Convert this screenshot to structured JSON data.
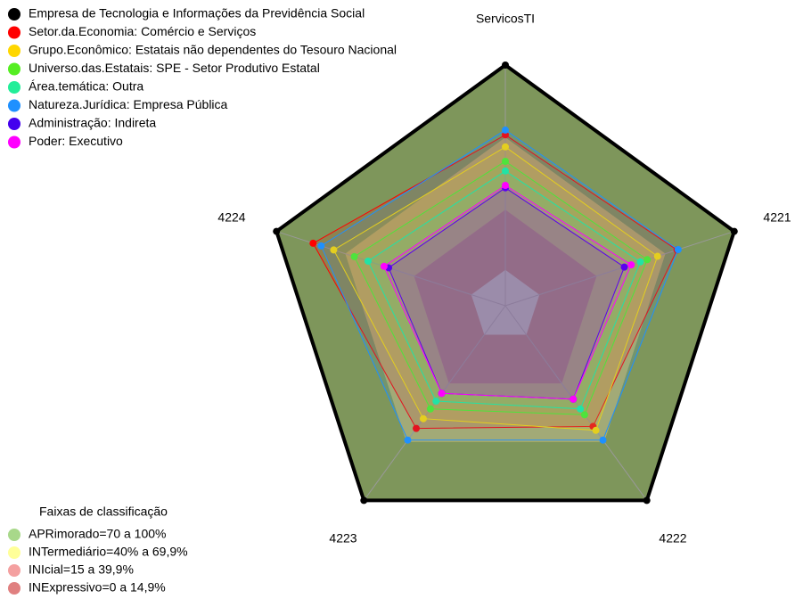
{
  "chart_data": {
    "type": "radar",
    "axes": [
      "ServicosTI",
      "4221",
      "4222",
      "4223",
      "4224"
    ],
    "ylim": [
      0,
      100
    ],
    "series": [
      {
        "name": "Empresa de Tecnologia e Informações da Previdência Social",
        "color": "#000000",
        "values": [
          100,
          100,
          100,
          100,
          100
        ]
      },
      {
        "name": "Setor.da.Economia: Comércio e Serviços",
        "color": "#ff0000",
        "values": [
          71,
          75,
          62,
          63,
          84
        ]
      },
      {
        "name": "Grupo.Econômico: Estatais não dependentes do Tesouro Nacional",
        "color": "#ffd700",
        "values": [
          66,
          66.5,
          64,
          58,
          75
        ]
      },
      {
        "name": "Universo.das.Estatais: SPE - Setor Produtivo Estatal",
        "color": "#55ee22",
        "values": [
          60,
          62,
          56,
          53,
          66
        ]
      },
      {
        "name": "Área.temática: Outra",
        "color": "#22ee99",
        "values": [
          56,
          59,
          53,
          49,
          60
        ]
      },
      {
        "name": "Natureza.Jurídica: Empresa Pública",
        "color": "#1e90ff",
        "values": [
          73,
          75.5,
          69,
          69,
          80.5
        ]
      },
      {
        "name": "Administração: Indireta",
        "color": "#4400ee",
        "values": [
          49,
          52,
          48,
          45,
          51
        ]
      },
      {
        "name": "Poder: Executivo",
        "color": "#ff00ff",
        "values": [
          50,
          55,
          48,
          45,
          53
        ]
      }
    ],
    "bands": {
      "title": "Faixas de classificação",
      "items": [
        {
          "label": "APRimorado=70 a 100%",
          "from": 70,
          "to": 100,
          "color": "#a8d88a"
        },
        {
          "label": "INTermediário=40% a 69,9%",
          "from": 40,
          "to": 69.9,
          "color": "#ffff99"
        },
        {
          "label": "INIcial=15 a 39,9%",
          "from": 15,
          "to": 39.9,
          "color": "#f4a0a0"
        },
        {
          "label": "INExpressivo=0 a 14,9%",
          "from": 0,
          "to": 14.9,
          "color": "#e08080"
        }
      ]
    }
  }
}
